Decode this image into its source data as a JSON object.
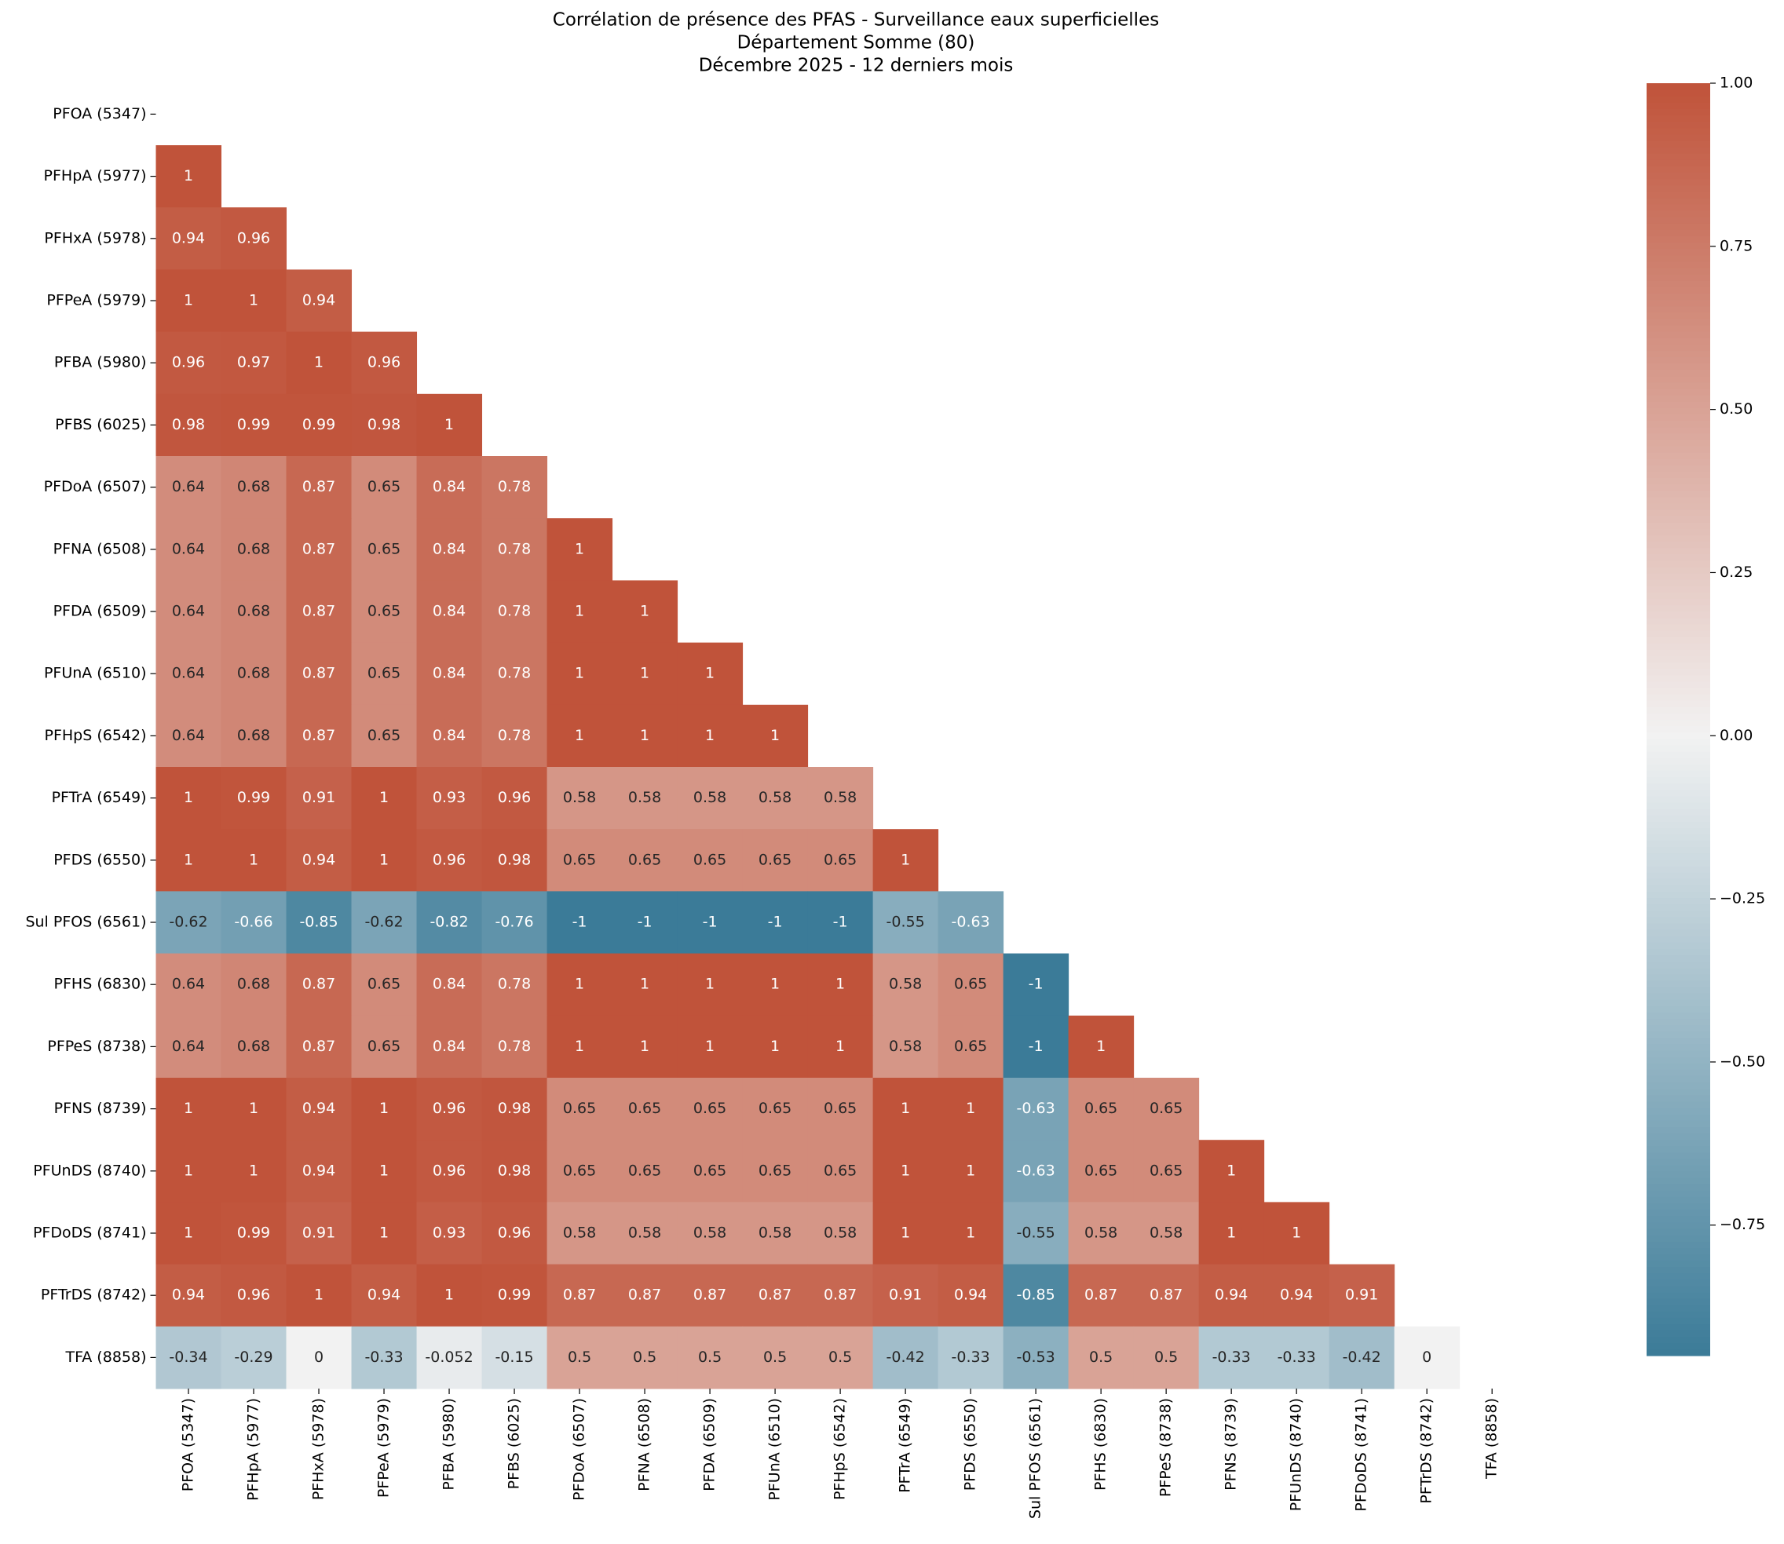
{
  "chart_data": {
    "type": "heatmap",
    "title_lines": [
      "Corrélation de présence des PFAS - Surveillance eaux superficielles",
      "Département Somme (80)",
      "Décembre 2025 - 12 derniers mois"
    ],
    "x": [
      "PFOA (5347)",
      "PFHpA (5977)",
      "PFHxA (5978)",
      "PFPeA (5979)",
      "PFBA (5980)",
      "PFBS (6025)",
      "PFDoA (6507)",
      "PFNA (6508)",
      "PFDA (6509)",
      "PFUnA (6510)",
      "PFHpS (6542)",
      "PFTrA (6549)",
      "PFDS (6550)",
      "Sul PFOS (6561)",
      "PFHS (6830)",
      "PFPeS (8738)",
      "PFNS (8739)",
      "PFUnDS (8740)",
      "PFDoDS (8741)",
      "PFTrDS (8742)",
      "TFA (8858)"
    ],
    "y": [
      "PFOA (5347)",
      "PFHpA (5977)",
      "PFHxA (5978)",
      "PFPeA (5979)",
      "PFBA (5980)",
      "PFBS (6025)",
      "PFDoA (6507)",
      "PFNA (6508)",
      "PFDA (6509)",
      "PFUnA (6510)",
      "PFHpS (6542)",
      "PFTrA (6549)",
      "PFDS (6550)",
      "Sul PFOS (6561)",
      "PFHS (6830)",
      "PFPeS (8738)",
      "PFNS (8739)",
      "PFUnDS (8740)",
      "PFDoDS (8741)",
      "PFTrDS (8742)",
      "TFA (8858)"
    ],
    "values": [
      [
        null,
        null,
        null,
        null,
        null,
        null,
        null,
        null,
        null,
        null,
        null,
        null,
        null,
        null,
        null,
        null,
        null,
        null,
        null,
        null,
        null
      ],
      [
        1,
        null,
        null,
        null,
        null,
        null,
        null,
        null,
        null,
        null,
        null,
        null,
        null,
        null,
        null,
        null,
        null,
        null,
        null,
        null,
        null
      ],
      [
        0.94,
        0.96,
        null,
        null,
        null,
        null,
        null,
        null,
        null,
        null,
        null,
        null,
        null,
        null,
        null,
        null,
        null,
        null,
        null,
        null,
        null
      ],
      [
        1,
        1,
        0.94,
        null,
        null,
        null,
        null,
        null,
        null,
        null,
        null,
        null,
        null,
        null,
        null,
        null,
        null,
        null,
        null,
        null,
        null
      ],
      [
        0.96,
        0.97,
        1,
        0.96,
        null,
        null,
        null,
        null,
        null,
        null,
        null,
        null,
        null,
        null,
        null,
        null,
        null,
        null,
        null,
        null,
        null
      ],
      [
        0.98,
        0.99,
        0.99,
        0.98,
        1,
        null,
        null,
        null,
        null,
        null,
        null,
        null,
        null,
        null,
        null,
        null,
        null,
        null,
        null,
        null,
        null
      ],
      [
        0.64,
        0.68,
        0.87,
        0.65,
        0.84,
        0.78,
        null,
        null,
        null,
        null,
        null,
        null,
        null,
        null,
        null,
        null,
        null,
        null,
        null,
        null,
        null
      ],
      [
        0.64,
        0.68,
        0.87,
        0.65,
        0.84,
        0.78,
        1,
        null,
        null,
        null,
        null,
        null,
        null,
        null,
        null,
        null,
        null,
        null,
        null,
        null,
        null
      ],
      [
        0.64,
        0.68,
        0.87,
        0.65,
        0.84,
        0.78,
        1,
        1,
        null,
        null,
        null,
        null,
        null,
        null,
        null,
        null,
        null,
        null,
        null,
        null,
        null
      ],
      [
        0.64,
        0.68,
        0.87,
        0.65,
        0.84,
        0.78,
        1,
        1,
        1,
        null,
        null,
        null,
        null,
        null,
        null,
        null,
        null,
        null,
        null,
        null,
        null
      ],
      [
        0.64,
        0.68,
        0.87,
        0.65,
        0.84,
        0.78,
        1,
        1,
        1,
        1,
        null,
        null,
        null,
        null,
        null,
        null,
        null,
        null,
        null,
        null,
        null
      ],
      [
        1,
        0.99,
        0.91,
        1,
        0.93,
        0.96,
        0.58,
        0.58,
        0.58,
        0.58,
        0.58,
        null,
        null,
        null,
        null,
        null,
        null,
        null,
        null,
        null,
        null
      ],
      [
        1,
        1,
        0.94,
        1,
        0.96,
        0.98,
        0.65,
        0.65,
        0.65,
        0.65,
        0.65,
        1,
        null,
        null,
        null,
        null,
        null,
        null,
        null,
        null,
        null
      ],
      [
        -0.62,
        -0.66,
        -0.85,
        -0.62,
        -0.82,
        -0.76,
        -1,
        -1,
        -1,
        -1,
        -1,
        -0.55,
        -0.63,
        null,
        null,
        null,
        null,
        null,
        null,
        null,
        null
      ],
      [
        0.64,
        0.68,
        0.87,
        0.65,
        0.84,
        0.78,
        1,
        1,
        1,
        1,
        1,
        0.58,
        0.65,
        -1,
        null,
        null,
        null,
        null,
        null,
        null,
        null
      ],
      [
        0.64,
        0.68,
        0.87,
        0.65,
        0.84,
        0.78,
        1,
        1,
        1,
        1,
        1,
        0.58,
        0.65,
        -1,
        1,
        null,
        null,
        null,
        null,
        null,
        null
      ],
      [
        1,
        1,
        0.94,
        1,
        0.96,
        0.98,
        0.65,
        0.65,
        0.65,
        0.65,
        0.65,
        1,
        1,
        -0.63,
        0.65,
        0.65,
        null,
        null,
        null,
        null,
        null
      ],
      [
        1,
        1,
        0.94,
        1,
        0.96,
        0.98,
        0.65,
        0.65,
        0.65,
        0.65,
        0.65,
        1,
        1,
        -0.63,
        0.65,
        0.65,
        1,
        null,
        null,
        null,
        null
      ],
      [
        1,
        0.99,
        0.91,
        1,
        0.93,
        0.96,
        0.58,
        0.58,
        0.58,
        0.58,
        0.58,
        1,
        1,
        -0.55,
        0.58,
        0.58,
        1,
        1,
        null,
        null,
        null
      ],
      [
        0.94,
        0.96,
        1,
        0.94,
        1,
        0.99,
        0.87,
        0.87,
        0.87,
        0.87,
        0.87,
        0.91,
        0.94,
        -0.85,
        0.87,
        0.87,
        0.94,
        0.94,
        0.91,
        null,
        null
      ],
      [
        -0.34,
        -0.29,
        0,
        -0.33,
        -0.052,
        -0.15,
        0.5,
        0.5,
        0.5,
        0.5,
        0.5,
        -0.42,
        -0.33,
        -0.53,
        0.5,
        0.5,
        -0.33,
        -0.33,
        -0.42,
        0,
        null
      ]
    ],
    "colorlim": [
      -0.95,
      1
    ],
    "colors": {
      "low": "#3b7b98",
      "mid": "#f2f2f2",
      "high": "#c0533a"
    },
    "colorbar_ticks": [
      {
        "value": 1,
        "label": "1.00"
      },
      {
        "value": 0.75,
        "label": "0.75"
      },
      {
        "value": 0.5,
        "label": "0.50"
      },
      {
        "value": 0.25,
        "label": "0.25"
      },
      {
        "value": 0,
        "label": "0.00"
      },
      {
        "value": -0.25,
        "label": "−0.25"
      },
      {
        "value": -0.5,
        "label": "−0.50"
      },
      {
        "value": -0.75,
        "label": "−0.75"
      }
    ]
  }
}
